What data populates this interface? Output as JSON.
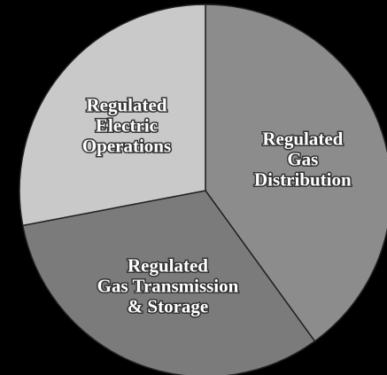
{
  "chart_data": {
    "type": "pie",
    "categories": [
      "Regulated\nGas\nDistribution",
      "Regulated\nGas Transmission\n& Storage",
      "Regulated\nElectric\nOperations"
    ],
    "values": [
      40,
      32,
      28
    ],
    "colors": [
      "#8c8c8c",
      "#7b7b7b",
      "#c9c9c9"
    ],
    "start_angle": 0,
    "direction": "clockwise"
  }
}
